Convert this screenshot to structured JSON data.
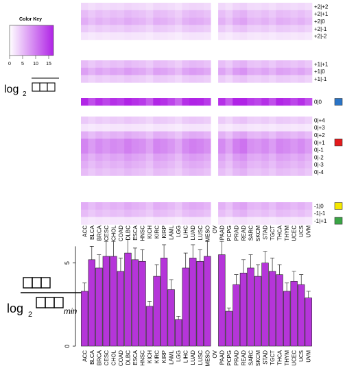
{
  "color_key": {
    "title": "Color Key",
    "ticks": [
      "0",
      "5",
      "10",
      "15"
    ],
    "range": [
      0,
      17
    ],
    "low_color": "#ffffff",
    "high_color": "#b023e6"
  },
  "heatmap_side_label": "log",
  "bar_side_label_main": "log",
  "bar_side_label_sub": "min",
  "chart_data": [
    {
      "type": "heatmap",
      "columns": [
        "ACC",
        "BLCA",
        "BRCA",
        "CESC",
        "CHOL",
        "COAD",
        "DLBC",
        "ESCA",
        "HNSC",
        "KICH",
        "KIRC",
        "KIRP",
        "LAML",
        "LGG",
        "LIHC",
        "LUAD",
        "LUSC",
        "MESO",
        "OV",
        "PAAD",
        "PCPG",
        "PRAD",
        "READ",
        "SARC",
        "SKCM",
        "STAD",
        "TGCT",
        "THCA",
        "THYM",
        "UCEC",
        "UCS",
        "UVM"
      ],
      "row_groups": [
        {
          "rows": [
            "+2|+2",
            "+2|+1",
            "+2|0",
            "+2|-1",
            "+2|-2"
          ],
          "marker": ""
        },
        {
          "rows": [
            "+1|+1",
            "+1|0",
            "+1|-1"
          ],
          "marker": ""
        },
        {
          "rows": [
            "0|0"
          ],
          "marker": "#2a74c6"
        },
        {
          "rows": [
            "0|+4",
            "0|+3",
            "0|+2",
            "0|+1",
            "0|-1",
            "0|-2",
            "0|-3",
            "0|-4"
          ],
          "marker": "#e41a1c"
        },
        {
          "rows": [
            "-1|0",
            "-1|-1",
            "-1|+1"
          ],
          "marker": ""
        }
      ],
      "group_markers": [
        {
          "row": "0|0",
          "color": "#2a74c6"
        },
        {
          "row": "0|+1",
          "color": "#e41a1c"
        },
        {
          "row": "-1|0",
          "color": "#f5e800"
        },
        {
          "row": "-1|+1",
          "color": "#3aa545"
        }
      ],
      "row_levels": {
        "+2|+2": 3,
        "+2|+1": 5,
        "+2|0": 6,
        "+2|-1": 4,
        "+2|-2": 2,
        "+1|+1": 5,
        "+1|0": 7,
        "+1|-1": 4,
        "0|0": 16,
        "0|+4": 4,
        "0|+3": 2,
        "0|+2": 6,
        "0|+1": 9,
        "0|-1": 9,
        "0|-2": 7,
        "0|-3": 6,
        "0|-4": 5,
        "-1|0": 6,
        "-1|-1": 5,
        "-1|+1": 2
      },
      "missing_columns": [
        "OV"
      ]
    },
    {
      "type": "bar",
      "categories": [
        "ACC",
        "BLCA",
        "BRCA",
        "CESC",
        "CHOL",
        "COAD",
        "DLBC",
        "ESCA",
        "HNSC",
        "KICH",
        "KIRC",
        "KIRP",
        "LAML",
        "LGG",
        "LIHC",
        "LUAD",
        "LUSC",
        "MESO",
        "OV",
        "PAAD",
        "PCPG",
        "PRAD",
        "READ",
        "SARC",
        "SKCM",
        "STAD",
        "TGCT",
        "THCA",
        "THYM",
        "UCEC",
        "UCS",
        "UVM"
      ],
      "values": [
        3.3,
        5.2,
        4.7,
        5.4,
        5.4,
        4.5,
        5.6,
        5.2,
        5.1,
        2.4,
        4.2,
        5.3,
        3.4,
        1.6,
        4.7,
        5.3,
        5.1,
        5.4,
        null,
        5.5,
        2.1,
        3.7,
        4.4,
        4.7,
        4.2,
        5.0,
        4.5,
        4.3,
        3.3,
        3.9,
        3.7,
        2.9
      ],
      "errors": [
        0.5,
        0.8,
        0.8,
        0.9,
        0.9,
        0.8,
        0.8,
        0.7,
        0.7,
        0.3,
        0.7,
        0.8,
        0.6,
        0.2,
        0.9,
        0.8,
        0.7,
        0.9,
        null,
        0.8,
        0.2,
        0.6,
        0.8,
        0.8,
        0.7,
        0.7,
        0.8,
        0.6,
        0.5,
        0.6,
        0.6,
        0.4
      ],
      "yticks": [
        "0",
        "5"
      ],
      "ylim": [
        0,
        6.8
      ],
      "bar_color": "#b535d9"
    }
  ]
}
